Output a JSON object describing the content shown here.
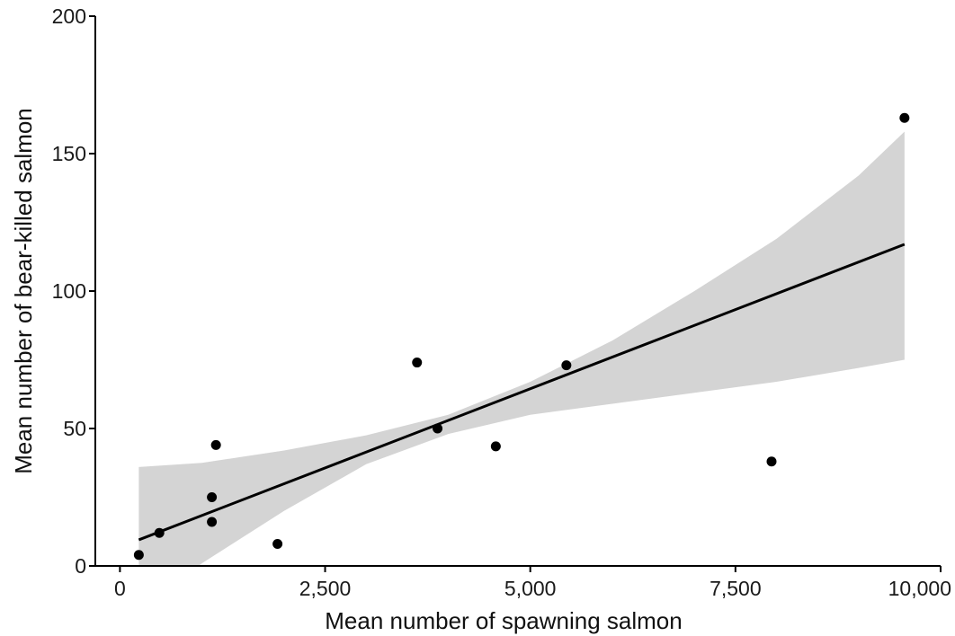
{
  "chart_data": {
    "type": "scatter",
    "title": "",
    "xlabel": "Mean number of spawning salmon",
    "ylabel": "Mean number of bear-killed salmon",
    "xlim": [
      -300,
      10000
    ],
    "ylim": [
      0,
      200
    ],
    "x_ticks": [
      0,
      2500,
      5000,
      7500,
      10000
    ],
    "x_tick_labels": [
      "0",
      "2,500",
      "5,000",
      "7,500",
      "10,000"
    ],
    "y_ticks": [
      0,
      50,
      100,
      150,
      200
    ],
    "y_tick_labels": [
      "0",
      "50",
      "100",
      "150",
      "200"
    ],
    "grid": false,
    "legend": "none",
    "points": [
      {
        "x": 230,
        "y": 4
      },
      {
        "x": 480,
        "y": 12
      },
      {
        "x": 1120,
        "y": 16
      },
      {
        "x": 1120,
        "y": 25
      },
      {
        "x": 1170,
        "y": 44
      },
      {
        "x": 1920,
        "y": 8
      },
      {
        "x": 3620,
        "y": 74
      },
      {
        "x": 3870,
        "y": 50
      },
      {
        "x": 4580,
        "y": 43.5
      },
      {
        "x": 5440,
        "y": 73
      },
      {
        "x": 7940,
        "y": 38
      },
      {
        "x": 9560,
        "y": 163
      }
    ],
    "fit_line": {
      "x": [
        230,
        9560
      ],
      "y": [
        9.5,
        117
      ]
    },
    "confidence_band": {
      "x": [
        230,
        1000,
        2000,
        3000,
        4000,
        5000,
        6000,
        7000,
        8000,
        9000,
        9560
      ],
      "upper": [
        36,
        37.5,
        42,
        47.5,
        55,
        67,
        82,
        100,
        119,
        142,
        158
      ],
      "lower": [
        -17,
        1,
        20,
        37,
        48,
        55,
        59,
        63,
        67,
        72,
        75
      ]
    },
    "colors": {
      "points": "#000000",
      "line": "#000000",
      "band": "#d4d4d4",
      "axis": "#000000",
      "text": "#1a1a1a"
    }
  }
}
